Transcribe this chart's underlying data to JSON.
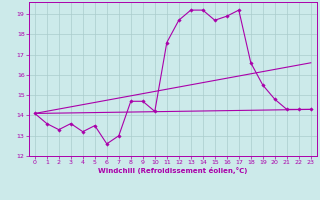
{
  "xlabel": "Windchill (Refroidissement éolien,°C)",
  "background_color": "#cceaea",
  "grid_color": "#aacccc",
  "line_color": "#aa00aa",
  "xlim": [
    -0.5,
    23.5
  ],
  "ylim": [
    12,
    19.6
  ],
  "yticks": [
    12,
    13,
    14,
    15,
    16,
    17,
    18,
    19
  ],
  "xticks": [
    0,
    1,
    2,
    3,
    4,
    5,
    6,
    7,
    8,
    9,
    10,
    11,
    12,
    13,
    14,
    15,
    16,
    17,
    18,
    19,
    20,
    21,
    22,
    23
  ],
  "series1_x": [
    0,
    1,
    2,
    3,
    4,
    5,
    6,
    7,
    8,
    9,
    10,
    11,
    12,
    13,
    14,
    15,
    16,
    17,
    18,
    19,
    20,
    21,
    22,
    23
  ],
  "series1_y": [
    14.1,
    13.6,
    13.3,
    13.6,
    13.2,
    13.5,
    12.6,
    13.0,
    14.7,
    14.7,
    14.2,
    17.6,
    18.7,
    19.2,
    19.2,
    18.7,
    18.9,
    19.2,
    16.6,
    15.5,
    14.8,
    14.3,
    14.3,
    14.3
  ],
  "series2_x": [
    0,
    23
  ],
  "series2_y": [
    14.1,
    16.6
  ],
  "series3_x": [
    0,
    23
  ],
  "series3_y": [
    14.1,
    14.3
  ]
}
